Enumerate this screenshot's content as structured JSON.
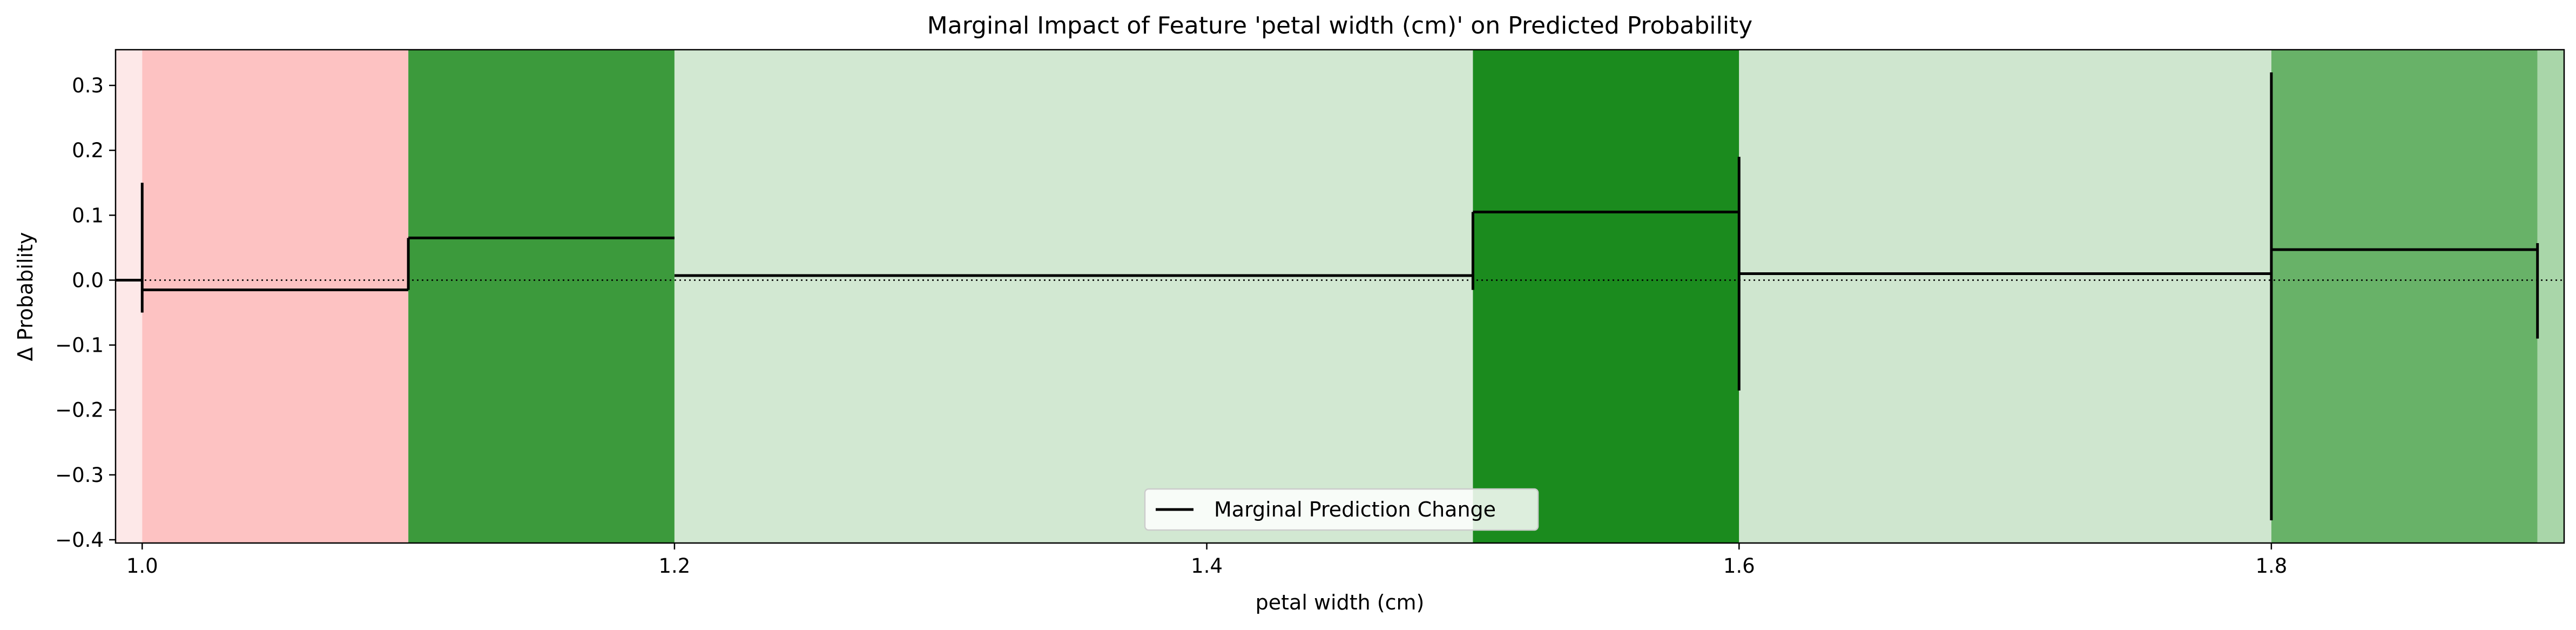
{
  "chart_data": {
    "type": "line",
    "title": "Marginal Impact of Feature 'petal width (cm)' on Predicted Probability",
    "xlabel": "petal width (cm)",
    "ylabel": "Δ Probability",
    "xlim": [
      0.99,
      1.91
    ],
    "ylim": [
      -0.405,
      0.355
    ],
    "xticks": [
      1.0,
      1.2,
      1.4,
      1.6,
      1.8
    ],
    "xtick_labels": [
      "1.0",
      "1.2",
      "1.4",
      "1.6",
      "1.8"
    ],
    "yticks": [
      -0.4,
      -0.3,
      -0.2,
      -0.1,
      0.0,
      0.1,
      0.2,
      0.3
    ],
    "ytick_labels": [
      "−0.4",
      "−0.3",
      "−0.2",
      "−0.1",
      "0.0",
      "0.1",
      "0.2",
      "0.3"
    ],
    "reference_line": {
      "y": 0.0,
      "style": "dotted"
    },
    "bands": [
      {
        "x0": 0.99,
        "x1": 1.0,
        "color": "#fde8e8"
      },
      {
        "x0": 1.0,
        "x1": 1.1,
        "color": "#fdc2c2"
      },
      {
        "x0": 1.1,
        "x1": 1.2,
        "color": "#3c9a3c"
      },
      {
        "x0": 1.2,
        "x1": 1.5,
        "color": "#d2e8d2"
      },
      {
        "x0": 1.5,
        "x1": 1.6,
        "color": "#1b8b1e"
      },
      {
        "x0": 1.6,
        "x1": 1.8,
        "color": "#cfe6cf"
      },
      {
        "x0": 1.8,
        "x1": 1.9,
        "color": "#68b268"
      },
      {
        "x0": 1.9,
        "x1": 1.91,
        "color": "#a9d6a9"
      }
    ],
    "series": [
      {
        "name": "Marginal Prediction Change",
        "color": "#000000",
        "steps": [
          {
            "x0": 0.99,
            "x1": 1.0,
            "y": 0.0
          },
          {
            "x0": 1.0,
            "x1": 1.1,
            "y": -0.015
          },
          {
            "x0": 1.1,
            "x1": 1.2,
            "y": 0.065
          },
          {
            "x0": 1.2,
            "x1": 1.5,
            "y": 0.007
          },
          {
            "x0": 1.5,
            "x1": 1.6,
            "y": 0.105
          },
          {
            "x0": 1.6,
            "x1": 1.8,
            "y": 0.01
          },
          {
            "x0": 1.8,
            "x1": 1.9,
            "y": 0.047
          }
        ],
        "error_bars": [
          {
            "x": 1.0,
            "low": -0.05,
            "high": 0.15
          },
          {
            "x": 1.1,
            "low": -0.015,
            "high": 0.065
          },
          {
            "x": 1.5,
            "low": -0.015,
            "high": 0.105
          },
          {
            "x": 1.6,
            "low": -0.17,
            "high": 0.19
          },
          {
            "x": 1.8,
            "low": -0.37,
            "high": 0.32
          },
          {
            "x": 1.9,
            "low": -0.09,
            "high": 0.057
          }
        ]
      }
    ],
    "legend": {
      "position": "bottom-center",
      "entries": [
        "Marginal Prediction Change"
      ]
    },
    "grid": false
  }
}
